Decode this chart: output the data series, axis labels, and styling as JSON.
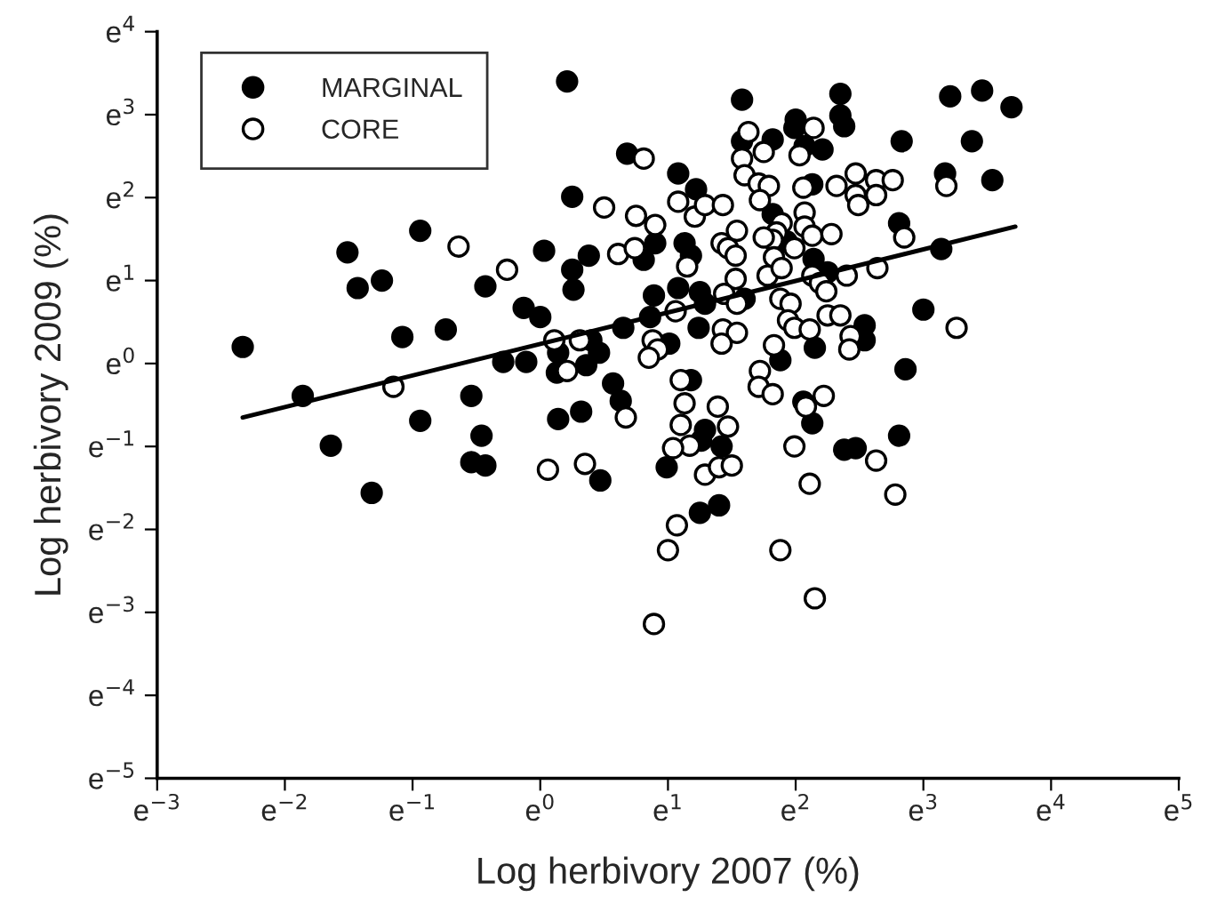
{
  "chart_data": {
    "type": "scatter",
    "xlabel": "Log herbivory 2007 (%)",
    "ylabel": "Log herbivory 2009 (%)",
    "xlim": [
      -3,
      5
    ],
    "ylim": [
      -5,
      4
    ],
    "xticks": [
      {
        "value": -3,
        "label": "e$^{−3}$"
      },
      {
        "value": -2,
        "label": "e$^{−2}$"
      },
      {
        "value": -1,
        "label": "e$^{−1}$"
      },
      {
        "value": 0,
        "label": "e$^{0}$"
      },
      {
        "value": 1,
        "label": "e$^{1}$"
      },
      {
        "value": 2,
        "label": "e$^{2}$"
      },
      {
        "value": 3,
        "label": "e$^{3}$"
      },
      {
        "value": 4,
        "label": "e$^{4}$"
      },
      {
        "value": 5,
        "label": "e$^{5}$"
      }
    ],
    "yticks": [
      {
        "value": -5,
        "label": "e$^{−5}$"
      },
      {
        "value": -4,
        "label": "e$^{−4}$"
      },
      {
        "value": -3,
        "label": "e$^{−3}$"
      },
      {
        "value": -2,
        "label": "e$^{−2}$"
      },
      {
        "value": -1,
        "label": "e$^{−1}$"
      },
      {
        "value": 0,
        "label": "e$^{0}$"
      },
      {
        "value": 1,
        "label": "e$^{1}$"
      },
      {
        "value": 2,
        "label": "e$^{2}$"
      },
      {
        "value": 3,
        "label": "e$^{3}$"
      },
      {
        "value": 4,
        "label": "e$^{4}$"
      }
    ],
    "grid": false,
    "legend": "top left",
    "series": [
      {
        "name": "MARGINAL",
        "color": "#000000",
        "marker": "circle",
        "x": [
          -2.33,
          -1.86,
          -1.64,
          -1.32,
          -1.08,
          -0.94,
          -0.94,
          -1.51,
          -1.43,
          -1.24,
          -0.74,
          -0.54,
          -0.46,
          -0.54,
          -0.43,
          -0.43,
          -0.29,
          -0.11,
          -0.13,
          0.0,
          0.03,
          0.14,
          0.14,
          0.21,
          1.58,
          2.35,
          2.35,
          2.38,
          2.0,
          1.99,
          1.58,
          1.82,
          2.07,
          2.21,
          0.68,
          1.08,
          1.22,
          2.13,
          0.25,
          1.82,
          0.38,
          0.25,
          0.26,
          0.9,
          1.13,
          1.18,
          0.81,
          1.93,
          2.14,
          2.25,
          0.89,
          1.08,
          1.25,
          1.29,
          1.6,
          0.86,
          0.65,
          1.24,
          1.01,
          2.15,
          1.88,
          0.4,
          0.46,
          0.36,
          0.13,
          0.57,
          0.63,
          1.18,
          2.06,
          2.13,
          2.54,
          2.54,
          3.21,
          3.46,
          3.69,
          2.83,
          3.38,
          3.17,
          3.54,
          2.81,
          3.14,
          3.0,
          2.86,
          2.81,
          0.32,
          0.47,
          0.99,
          1.29,
          1.26,
          1.42,
          1.25,
          1.4,
          2.38,
          2.47
        ],
        "values": [
          0.2,
          -0.39,
          -0.99,
          -1.56,
          0.32,
          -0.69,
          1.6,
          1.34,
          0.91,
          1.0,
          0.41,
          -0.39,
          -0.87,
          -1.19,
          -1.23,
          0.93,
          0.02,
          0.02,
          0.67,
          0.56,
          1.36,
          0.13,
          -0.67,
          3.4,
          3.18,
          3.25,
          2.99,
          2.86,
          2.94,
          2.84,
          2.68,
          2.7,
          2.62,
          2.58,
          2.53,
          2.29,
          2.1,
          2.16,
          2.01,
          1.8,
          1.3,
          1.13,
          0.89,
          1.45,
          1.45,
          1.3,
          1.25,
          1.47,
          1.26,
          1.1,
          0.82,
          0.91,
          0.86,
          0.72,
          0.78,
          0.56,
          0.43,
          0.43,
          0.24,
          0.19,
          0.04,
          0.28,
          0.13,
          -0.02,
          -0.11,
          -0.24,
          -0.45,
          -0.2,
          -0.46,
          -0.72,
          0.46,
          0.28,
          3.22,
          3.29,
          3.09,
          2.68,
          2.68,
          2.29,
          2.21,
          1.69,
          1.38,
          0.65,
          -0.07,
          -0.87,
          -0.58,
          -1.41,
          -1.25,
          -0.8,
          -0.93,
          -1.0,
          -1.8,
          -1.71,
          -1.04,
          -1.02
        ]
      },
      {
        "name": "CORE",
        "color": "#ffffff",
        "marker": "circle",
        "x": [
          -1.15,
          0.06,
          0.11,
          -0.64,
          -0.26,
          0.81,
          1.63,
          1.75,
          1.58,
          2.14,
          2.03,
          0.5,
          0.75,
          0.9,
          1.08,
          1.21,
          1.29,
          1.43,
          1.6,
          1.71,
          1.79,
          1.72,
          2.47,
          2.32,
          2.47,
          2.49,
          2.07,
          2.06,
          1.89,
          1.85,
          2.07,
          2.13,
          2.28,
          1.99,
          1.82,
          1.83,
          1.75,
          1.54,
          1.42,
          1.47,
          1.53,
          0.61,
          0.74,
          1.15,
          1.53,
          1.78,
          1.89,
          2.13,
          2.4,
          2.19,
          2.24,
          1.44,
          1.54,
          1.88,
          1.96,
          1.94,
          1.99,
          2.11,
          2.25,
          2.35,
          1.06,
          0.88,
          0.92,
          1.43,
          1.54,
          1.42,
          1.83,
          0.85,
          0.21,
          0.31,
          2.43,
          2.42,
          1.1,
          1.72,
          1.71,
          1.82,
          2.22,
          2.63,
          2.76,
          2.63,
          3.18,
          2.85,
          2.64,
          3.26,
          0.35,
          0.67,
          1.13,
          1.1,
          1.17,
          1.04,
          1.39,
          1.47,
          1.29,
          1.4,
          1.5,
          1.07,
          1.0,
          0.89,
          1.99,
          2.11,
          1.88,
          2.15,
          2.63,
          2.08,
          2.78
        ],
        "values": [
          -0.28,
          -1.28,
          0.28,
          1.41,
          1.13,
          2.47,
          2.79,
          2.55,
          2.47,
          2.84,
          2.51,
          1.88,
          1.78,
          1.67,
          1.95,
          1.77,
          1.91,
          1.91,
          2.27,
          2.17,
          2.14,
          1.97,
          2.29,
          2.14,
          2.03,
          1.91,
          1.82,
          2.12,
          1.69,
          1.58,
          1.65,
          1.54,
          1.56,
          1.39,
          1.49,
          1.28,
          1.52,
          1.6,
          1.45,
          1.39,
          1.3,
          1.32,
          1.39,
          1.17,
          1.02,
          1.06,
          1.15,
          1.06,
          1.06,
          0.97,
          0.87,
          0.84,
          0.72,
          0.78,
          0.72,
          0.52,
          0.43,
          0.41,
          0.58,
          0.58,
          0.63,
          0.28,
          0.17,
          0.41,
          0.37,
          0.24,
          0.22,
          0.07,
          -0.09,
          0.28,
          0.33,
          0.17,
          -0.2,
          -0.09,
          -0.28,
          -0.37,
          -0.39,
          2.21,
          2.21,
          2.03,
          2.14,
          1.52,
          1.15,
          0.43,
          -1.21,
          -0.65,
          -0.48,
          -0.74,
          -0.99,
          -1.02,
          -0.52,
          -0.76,
          -1.34,
          -1.25,
          -1.23,
          -1.95,
          -2.25,
          -3.14,
          -1.0,
          -1.45,
          -2.25,
          -2.83,
          -1.17,
          -0.52,
          -1.58
        ]
      },
      {
        "type": "line",
        "color": "#000000",
        "x": [
          -2.33,
          3.72
        ],
        "values": [
          -0.65,
          1.65
        ]
      }
    ]
  }
}
